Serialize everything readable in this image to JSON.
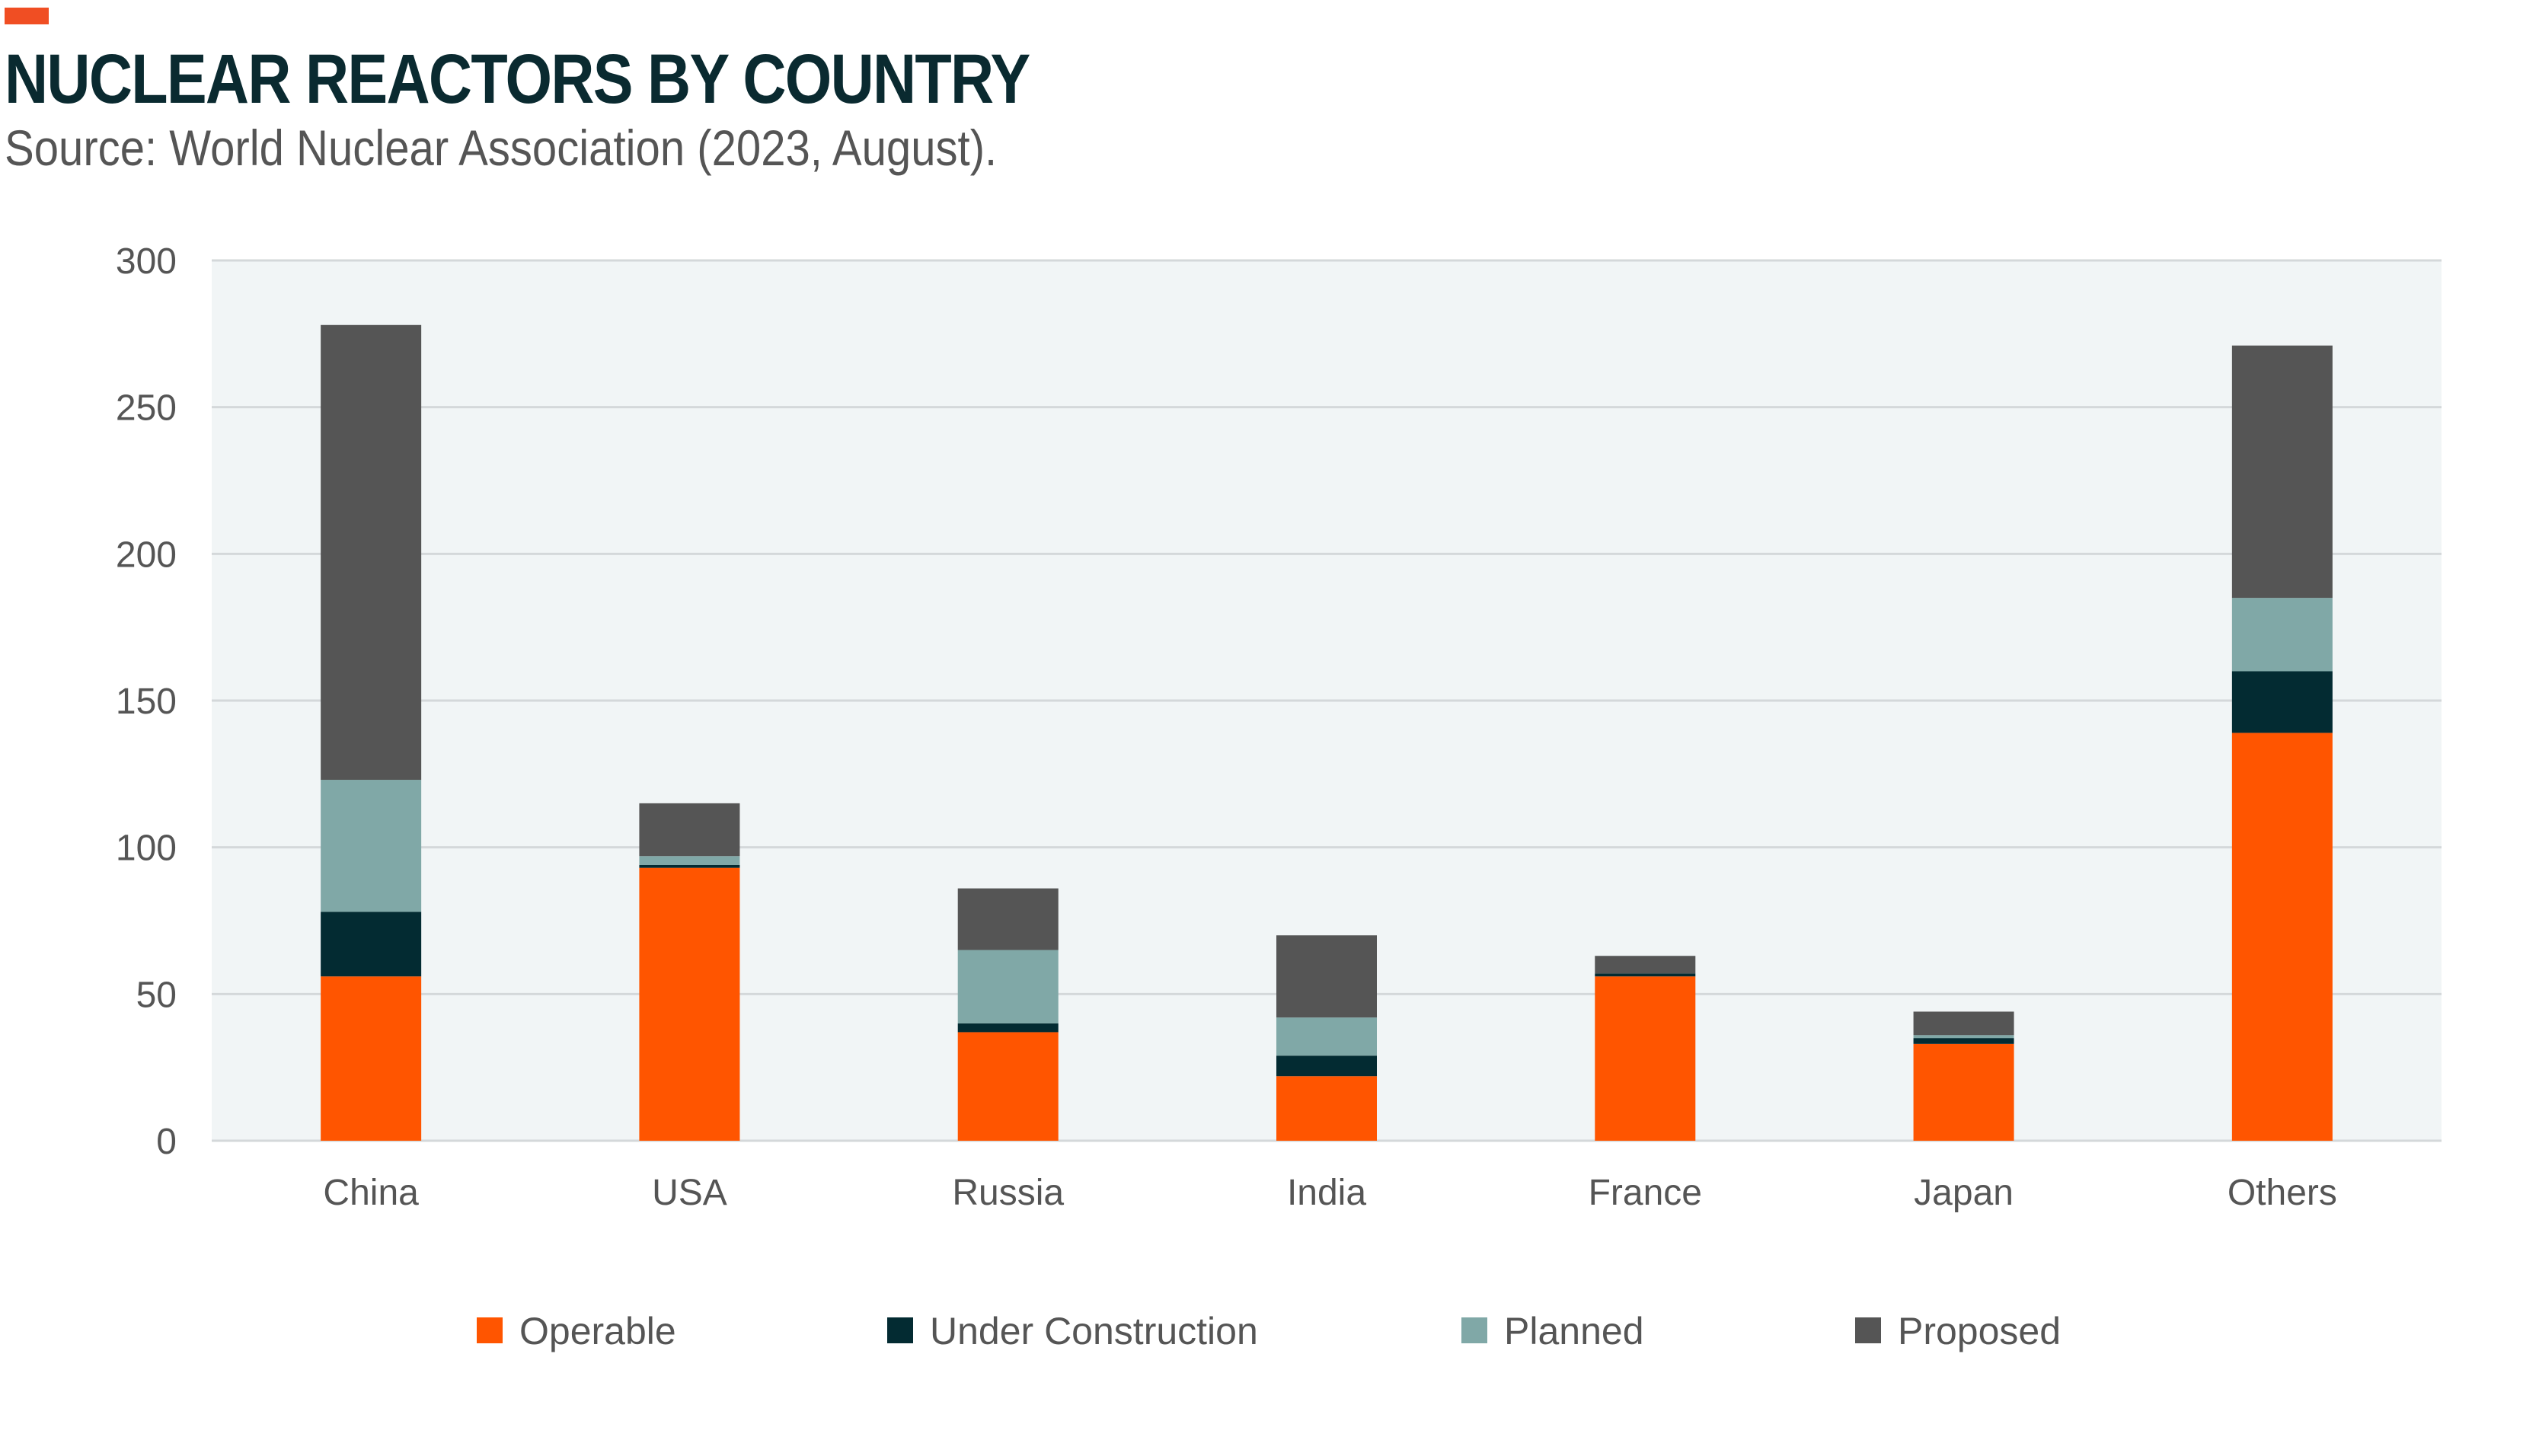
{
  "header": {
    "title": "NUCLEAR REACTORS BY COUNTRY",
    "subtitle": "Source: World Nuclear Association (2023, August)."
  },
  "chart_data": {
    "type": "bar",
    "stacked": true,
    "categories": [
      "China",
      "USA",
      "Russia",
      "India",
      "France",
      "Japan",
      "Others"
    ],
    "series": [
      {
        "name": "Operable",
        "color": "#ff5500",
        "values": [
          56,
          93,
          37,
          22,
          56,
          33,
          139
        ]
      },
      {
        "name": "Under Construction",
        "color": "#032b32",
        "values": [
          22,
          1,
          3,
          7,
          1,
          2,
          21
        ]
      },
      {
        "name": "Planned",
        "color": "#80a8a7",
        "values": [
          45,
          3,
          25,
          13,
          0,
          1,
          25
        ]
      },
      {
        "name": "Proposed",
        "color": "#555555",
        "values": [
          155,
          18,
          21,
          28,
          6,
          8,
          86
        ]
      }
    ],
    "ylim": [
      0,
      300
    ],
    "yticks": [
      0,
      50,
      100,
      150,
      200,
      250,
      300
    ],
    "grid": true,
    "plot_background": "#f1f5f6",
    "legend_position": "bottom"
  }
}
